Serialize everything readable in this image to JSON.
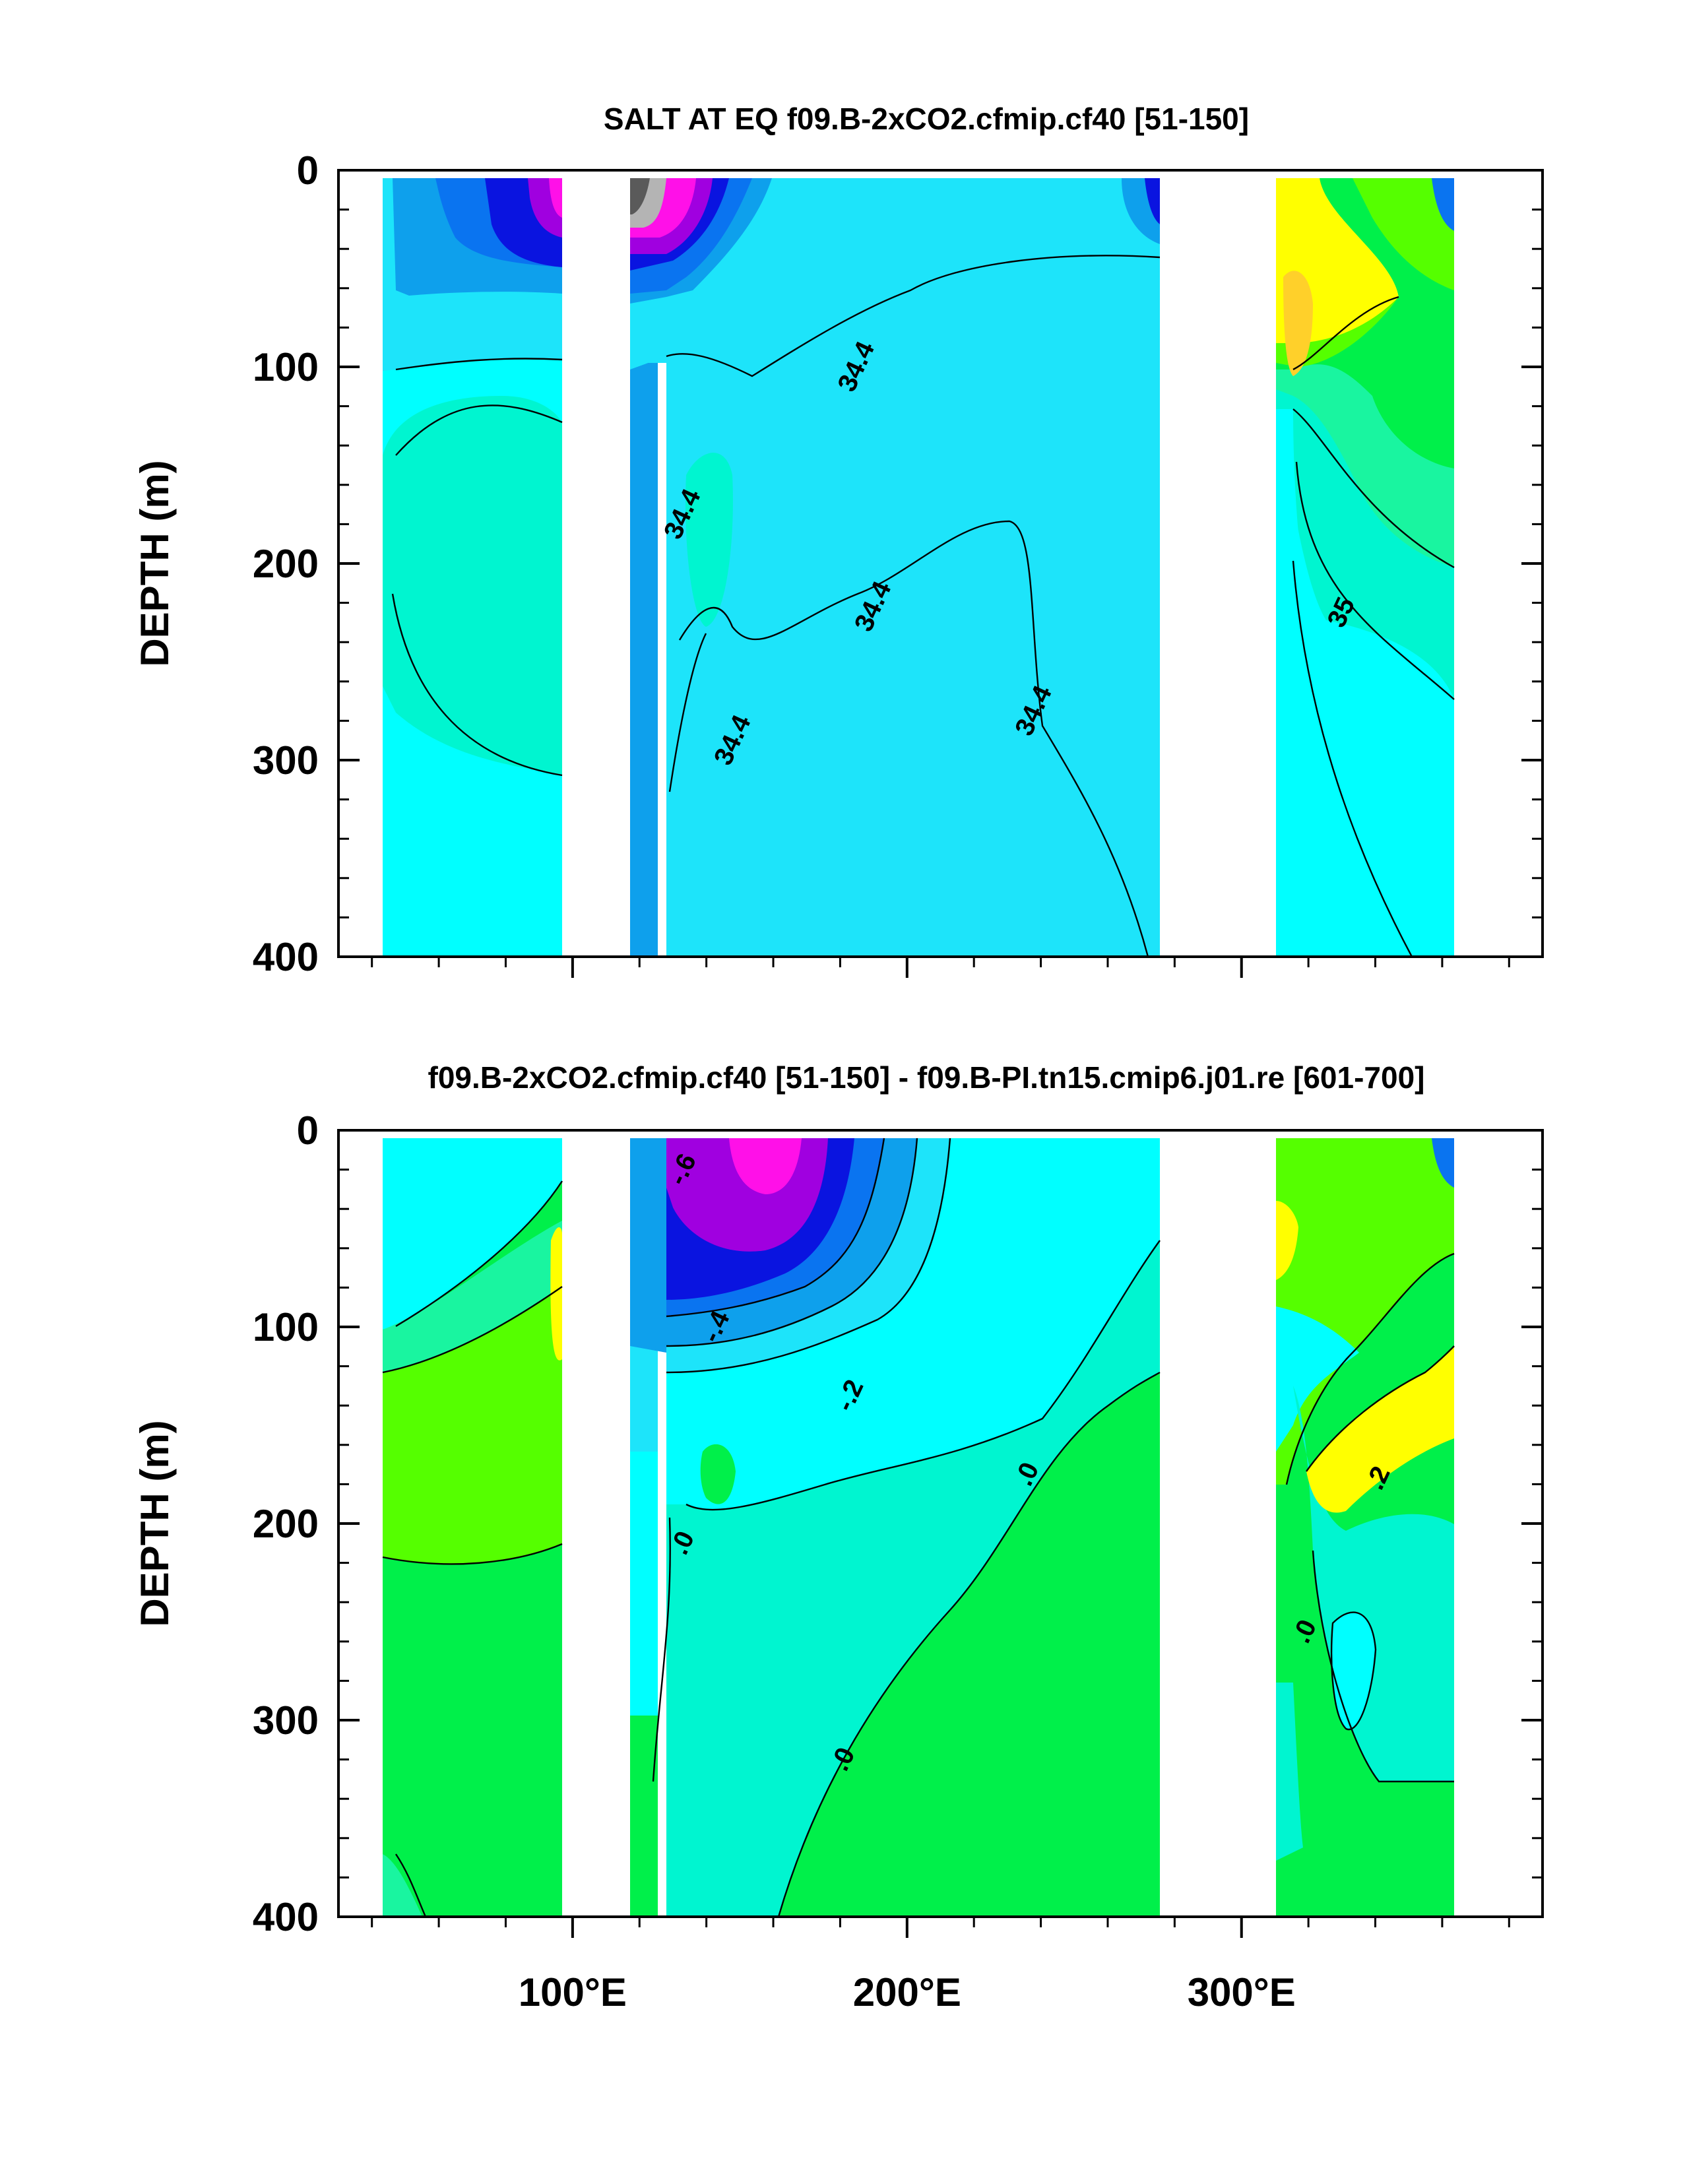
{
  "chart_data": [
    {
      "type": "heatmap",
      "title": "SALT AT EQ f09.B-2xCO2.cfmip.cf40 [51-150]",
      "ylabel": "DEPTH (m)",
      "xlabel": "",
      "xlim": [
        30,
        390
      ],
      "ylim": [
        400,
        0
      ],
      "x_ticks": [
        100,
        200,
        300
      ],
      "x_tick_labels": [
        "",
        "",
        ""
      ],
      "y_ticks": [
        0,
        100,
        200,
        300,
        400
      ],
      "y_tick_labels": [
        "0",
        "100",
        "200",
        "300",
        "400"
      ],
      "land_gaps_lon": [
        [
          98,
          110
        ],
        [
          128,
          131
        ],
        [
          278,
          314
        ]
      ],
      "contour_labels": [
        {
          "text": "34.4",
          "lon": 185,
          "depth": 100
        },
        {
          "text": "34.4",
          "lon": 133,
          "depth": 175
        },
        {
          "text": "34.4",
          "lon": 190,
          "depth": 222
        },
        {
          "text": "34.4",
          "lon": 148,
          "depth": 290
        },
        {
          "text": "34.4",
          "lon": 238,
          "depth": 275
        },
        {
          "text": "35",
          "lon": 330,
          "depth": 225
        }
      ]
    },
    {
      "type": "heatmap",
      "title": "f09.B-2xCO2.cfmip.cf40 [51-150] - f09.B-PI.tn15.cmip6.j01.re [601-700]",
      "ylabel": "DEPTH (m)",
      "xlabel": "",
      "xlim": [
        30,
        390
      ],
      "ylim": [
        400,
        0
      ],
      "x_ticks": [
        100,
        200,
        300
      ],
      "x_tick_labels": [
        "100°E",
        "200°E",
        "300°E"
      ],
      "y_ticks": [
        0,
        100,
        200,
        300,
        400
      ],
      "y_tick_labels": [
        "0",
        "100",
        "200",
        "300",
        "400"
      ],
      "land_gaps_lon": [
        [
          98,
          105
        ],
        [
          110,
          118
        ],
        [
          128,
          131
        ],
        [
          278,
          314
        ]
      ],
      "contour_labels": [
        {
          "text": "-.6",
          "lon": 133,
          "depth": 20
        },
        {
          "text": "-.4",
          "lon": 143,
          "depth": 100
        },
        {
          "text": "-.2",
          "lon": 183,
          "depth": 135
        },
        {
          "text": ".0",
          "lon": 236,
          "depth": 175
        },
        {
          "text": ".2",
          "lon": 341,
          "depth": 177
        },
        {
          "text": ".0",
          "lon": 133,
          "depth": 210
        },
        {
          "text": ".0",
          "lon": 319,
          "depth": 255
        },
        {
          "text": ".0",
          "lon": 181,
          "depth": 320
        }
      ]
    }
  ]
}
